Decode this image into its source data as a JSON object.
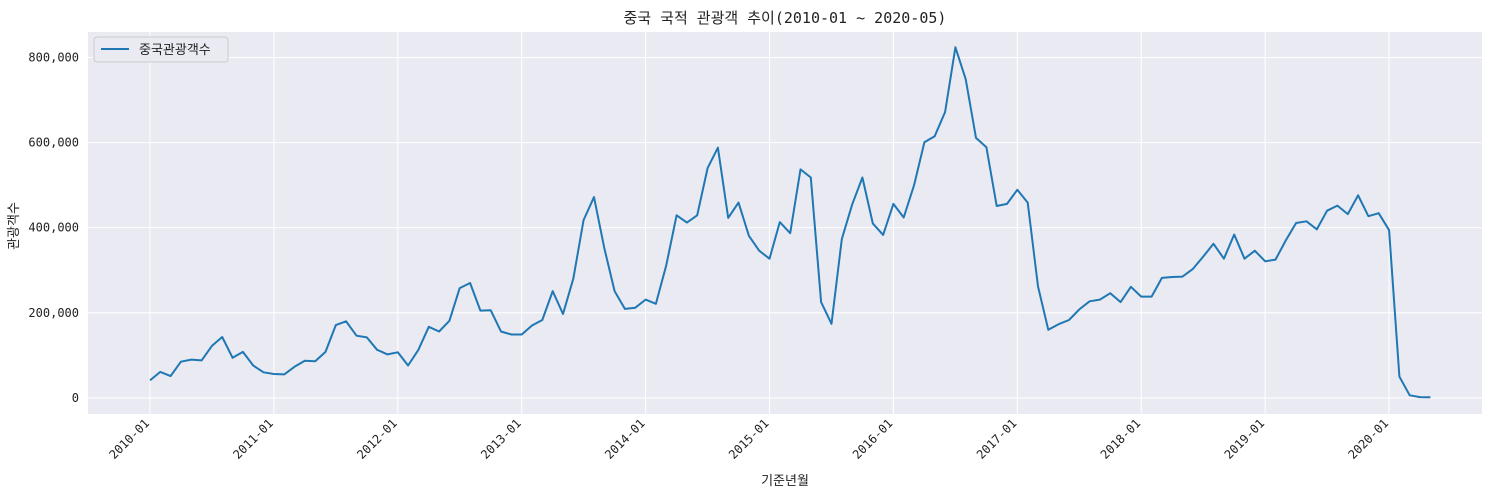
{
  "chart_data": {
    "type": "line",
    "title": "중국 국적 관광객 추이(2010-01 ~ 2020-05)",
    "xlabel": "기준년월",
    "ylabel": "관광객수",
    "x_start": "2010-01",
    "x_end": "2020-05",
    "xlim": [
      "2009-07",
      "2020-10"
    ],
    "ylim": [
      -38000,
      860000
    ],
    "x_ticks": [
      "2010-01",
      "2011-01",
      "2012-01",
      "2013-01",
      "2014-01",
      "2015-01",
      "2016-01",
      "2017-01",
      "2018-01",
      "2019-01",
      "2020-01"
    ],
    "y_ticks": [
      0,
      200000,
      400000,
      600000,
      800000
    ],
    "y_tick_labels": [
      "0",
      "200,000",
      "400,000",
      "600,000",
      "800,000"
    ],
    "grid": true,
    "legend_position": "upper-left",
    "series": [
      {
        "name": "중국관광객수",
        "color": "#1f77b4",
        "values": [
          41000,
          61000,
          51000,
          85000,
          90000,
          88000,
          122000,
          143000,
          94000,
          108000,
          76000,
          60000,
          56000,
          55000,
          73000,
          87000,
          86000,
          108000,
          171000,
          180000,
          146000,
          142000,
          113000,
          102000,
          107000,
          76000,
          113000,
          167000,
          156000,
          181000,
          258000,
          270000,
          205000,
          206000,
          156000,
          149000,
          149000,
          170000,
          183000,
          251000,
          197000,
          280000,
          418000,
          472000,
          352000,
          251000,
          209000,
          212000,
          231000,
          221000,
          312000,
          429000,
          412000,
          429000,
          540000,
          588000,
          423000,
          459000,
          381000,
          346000,
          327000,
          413000,
          387000,
          537000,
          518000,
          225000,
          174000,
          373000,
          454000,
          518000,
          410000,
          383000,
          456000,
          424000,
          500000,
          601000,
          615000,
          672000,
          824000,
          749000,
          611000,
          589000,
          451000,
          456000,
          489000,
          459000,
          262000,
          160000,
          173000,
          183000,
          208000,
          227000,
          231000,
          246000,
          225000,
          261000,
          238000,
          238000,
          282000,
          284000,
          285000,
          303000,
          332000,
          362000,
          327000,
          384000,
          327000,
          346000,
          321000,
          325000,
          370000,
          411000,
          415000,
          396000,
          440000,
          452000,
          432000,
          476000,
          427000,
          434000,
          394000,
          50000,
          6000,
          1800,
          1200
        ]
      }
    ]
  }
}
